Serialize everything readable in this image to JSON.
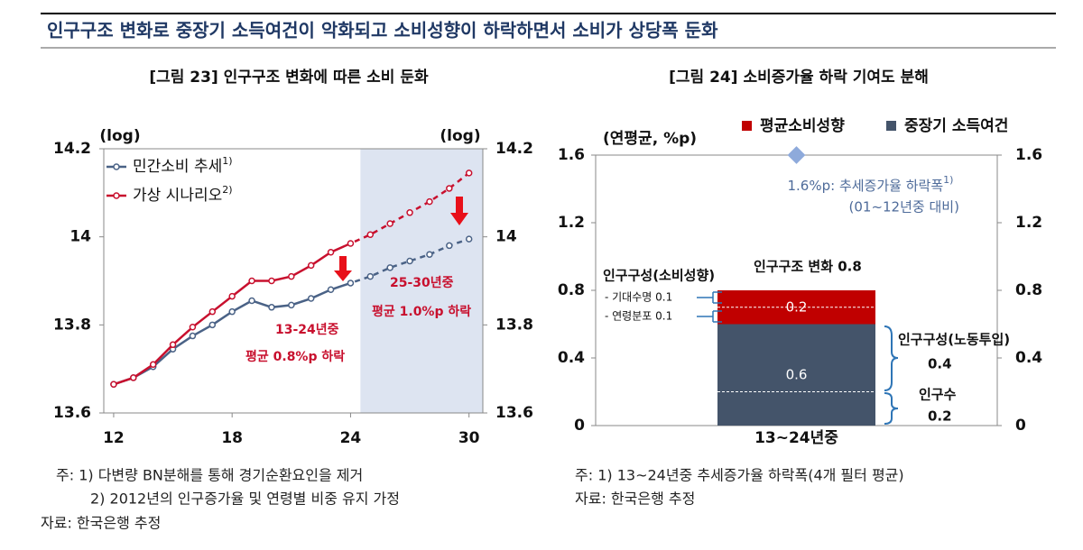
{
  "header": {
    "title": "인구구조 변화로 중장기 소득여건이 악화되고 소비성향이 하락하면서 소비가 상당폭 둔화"
  },
  "chart_data": [
    {
      "type": "line",
      "title": "[그림 23] 인구구조 변화에 따른 소비 둔화",
      "y_label": "(log)",
      "y2_label": "(log)",
      "x": [
        12,
        13,
        14,
        15,
        16,
        17,
        18,
        19,
        20,
        21,
        22,
        23,
        24,
        25,
        26,
        27,
        28,
        29,
        30
      ],
      "xlim": [
        11.5,
        30.7
      ],
      "xticks": [
        12,
        18,
        24,
        30
      ],
      "ylim": [
        13.6,
        14.2
      ],
      "yticks": [
        14.2,
        14,
        13.8,
        13.6
      ],
      "y2lim": [
        13.6,
        14.2
      ],
      "y2ticks": [
        14.2,
        14,
        13.8,
        13.6
      ],
      "dashed_from": 24,
      "shade_from": 24.5,
      "series": [
        {
          "name": "민간소비 추세",
          "name_sup": "1)",
          "color": "#4a6286",
          "values": [
            13.665,
            13.68,
            13.705,
            13.745,
            13.775,
            13.8,
            13.83,
            13.855,
            13.84,
            13.845,
            13.86,
            13.88,
            13.895,
            13.91,
            13.93,
            13.945,
            13.96,
            13.98,
            13.995
          ]
        },
        {
          "name": "가상 시나리오",
          "name_sup": "2)",
          "color": "#c8102e",
          "values": [
            13.665,
            13.68,
            13.71,
            13.755,
            13.795,
            13.83,
            13.865,
            13.9,
            13.9,
            13.91,
            13.935,
            13.965,
            13.985,
            14.005,
            14.03,
            14.055,
            14.08,
            14.11,
            14.145
          ]
        }
      ],
      "annotations": [
        "13-24년중",
        "평균 0.8%p 하락",
        "25-30년중",
        "평균 1.0%p 하락"
      ],
      "notes": [
        "주: 1) 다변량 BN분해를 통해 경기순환요인을 제거",
        "2) 2012년의 인구증가율 및 연령별 비중 유지 가정",
        "자료: 한국은행 추정"
      ]
    },
    {
      "type": "bar",
      "stacked": true,
      "title": "[그림 24] 소비증가율 하락 기여도 분해",
      "y_label": "(연평균, %p)",
      "categories": [
        "13~24년중"
      ],
      "ylim": [
        0,
        1.6
      ],
      "yticks": [
        0,
        0.4,
        0.8,
        1.2,
        1.6
      ],
      "y2lim": [
        0,
        1.6
      ],
      "y2ticks": [
        0,
        0.4,
        0.8,
        1.2,
        1.6
      ],
      "series": [
        {
          "name": "중장기 소득여건",
          "color": "#44546a",
          "values": [
            0.6
          ]
        },
        {
          "name": "평균소비성향",
          "color": "#c00000",
          "values": [
            0.2
          ]
        }
      ],
      "breakdown_lines": [
        0.2,
        0.7
      ],
      "marker": {
        "value": 1.6,
        "color": "#8eaadb",
        "label": "1.6%p: 추세증가율 하락폭",
        "label_sup": "1)",
        "sublabel": "(01~12년중 대비)"
      },
      "annotations": [
        "인구구조 변화 0.8",
        "인구구성(소비성향)",
        "- 기대수명 0.1",
        "- 연령분포 0.1",
        "인구구성(노동투입)",
        "0.4",
        "인구수",
        "0.2"
      ],
      "notes": [
        "주: 1) 13~24년중 추세증가율 하락폭(4개 필터 평균)",
        "자료: 한국은행 추정"
      ]
    }
  ]
}
